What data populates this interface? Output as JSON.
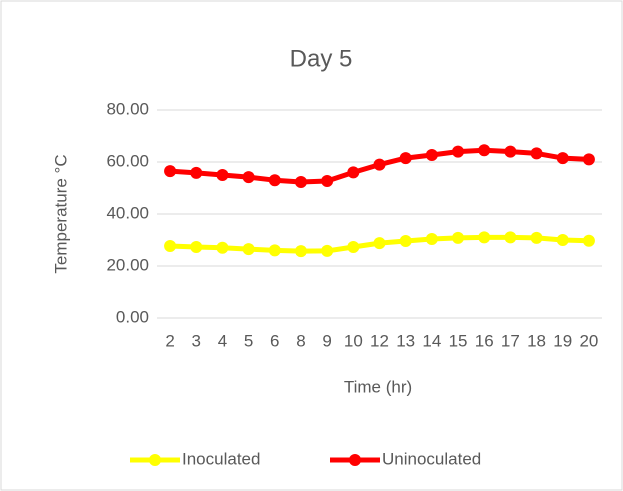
{
  "chart_data": {
    "type": "line",
    "title": "Day 5",
    "x_label": "Time (hr)",
    "y_label": "Temperature °C",
    "categories": [
      "2",
      "3",
      "4",
      "5",
      "6",
      "8",
      "9",
      "10",
      "12",
      "13",
      "14",
      "15",
      "16",
      "17",
      "18",
      "19",
      "20"
    ],
    "series": [
      {
        "name": "Inoculated",
        "color": "#ffff00",
        "values": [
          27.7,
          27.3,
          27,
          26.5,
          26,
          25.7,
          25.8,
          27.3,
          28.8,
          29.6,
          30.4,
          30.8,
          31,
          31,
          30.8,
          30,
          29.7
        ]
      },
      {
        "name": "Uninoculated",
        "color": "#ff0000",
        "values": [
          56.5,
          55.8,
          55,
          54.2,
          53,
          52.3,
          52.7,
          56,
          59,
          61.5,
          62.7,
          64,
          64.5,
          64,
          63.3,
          61.5,
          61
        ]
      }
    ],
    "ylim": [
      0,
      80
    ],
    "yticks": [
      {
        "value": 0,
        "label": "0.00"
      },
      {
        "value": 20,
        "label": "20.00"
      },
      {
        "value": 40,
        "label": "40.00"
      },
      {
        "value": 60,
        "label": "60.00"
      },
      {
        "value": 80,
        "label": "80.00"
      }
    ],
    "grid": true,
    "legend": "bottom"
  }
}
